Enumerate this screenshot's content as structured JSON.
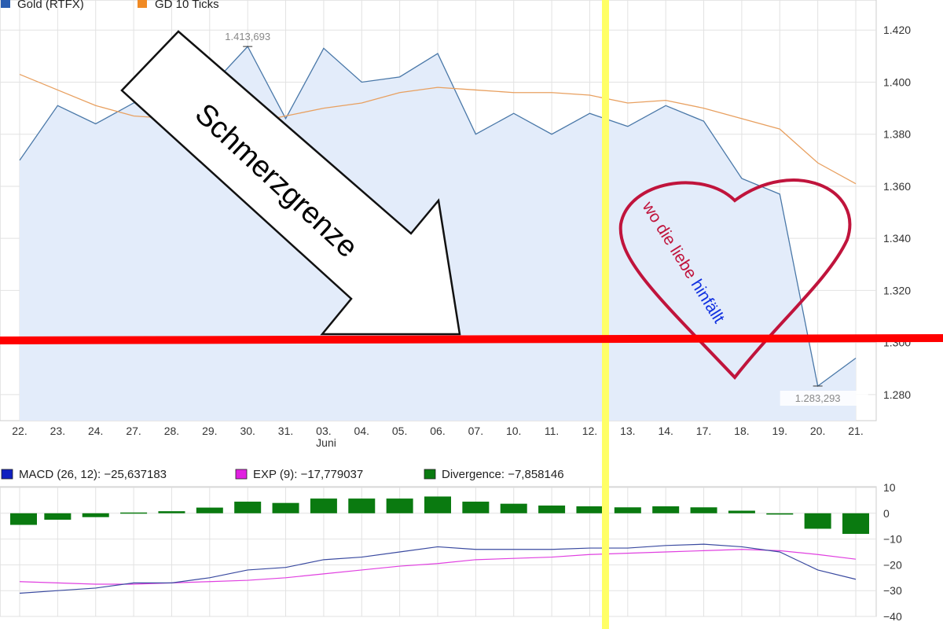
{
  "chart_data": [
    {
      "type": "area",
      "legend": [
        {
          "label": "Gold (RTFX)",
          "color": "#2a5db0"
        },
        {
          "label": "GD 10 Ticks",
          "color": "#f08a24"
        }
      ],
      "categories": [
        "22.",
        "23.",
        "24.",
        "27.",
        "28.",
        "29.",
        "30.",
        "31.",
        "03.",
        "04.",
        "05.",
        "06.",
        "07.",
        "10.",
        "11.",
        "12.",
        "13.",
        "14.",
        "17.",
        "18.",
        "19.",
        "20.",
        "21."
      ],
      "month_label": "Juni",
      "series": [
        {
          "name": "Gold (RTFX)",
          "color": "#4a78a8",
          "fill": "#e3ecfa",
          "values": [
            1370,
            1391,
            1384,
            1392,
            1396,
            1398,
            1413.693,
            1386,
            1413,
            1400,
            1402,
            1411,
            1380,
            1388,
            1380,
            1388,
            1383,
            1391,
            1385,
            1363,
            1357,
            1283.293,
            1294
          ]
        },
        {
          "name": "GD 10 Ticks",
          "color": "#e8a060",
          "values": [
            1403,
            1397,
            1391,
            1387,
            1386,
            1385,
            1384,
            1387,
            1390,
            1392,
            1396,
            1398,
            1397,
            1396,
            1396,
            1395,
            1392,
            1393,
            1390,
            1386,
            1382,
            1369,
            1361
          ]
        }
      ],
      "y_ticks": [
        "1.420",
        "1.400",
        "1.380",
        "1.360",
        "1.340",
        "1.320",
        "1.300",
        "1.280"
      ],
      "ylim": [
        1270,
        1424
      ],
      "max_label": "1.413,693",
      "min_label": "1.283,293",
      "grid": true
    },
    {
      "type": "bar",
      "legend": [
        {
          "label": "MACD (26, 12): −25,637183",
          "color": "#1020c0"
        },
        {
          "label": "EXP (9): −17,779037",
          "color": "#e020e0"
        },
        {
          "label": "Divergence: −7,858146",
          "color": "#0a7a10"
        }
      ],
      "series": [
        {
          "name": "Divergence",
          "color": "#0a7a10",
          "values": [
            -4.5,
            -2.5,
            -1.5,
            0.3,
            0.8,
            2.2,
            4.5,
            4,
            5.7,
            5.7,
            5.7,
            6.5,
            4.5,
            3.7,
            3,
            2.7,
            2.3,
            2.7,
            2.3,
            1,
            -0.5,
            -6,
            -8
          ]
        },
        {
          "name": "MACD",
          "color": "#3a4aa0",
          "values": [
            -31,
            -30,
            -29,
            -27,
            -27,
            -25,
            -22,
            -21,
            -18,
            -17,
            -15,
            -13,
            -14,
            -14,
            -14,
            -13.5,
            -13.5,
            -12.5,
            -12,
            -13,
            -15,
            -22,
            -25.6
          ]
        },
        {
          "name": "EXP",
          "color": "#e040e0",
          "values": [
            -26.5,
            -27,
            -27.5,
            -27.5,
            -27,
            -26.5,
            -26,
            -25,
            -23.5,
            -22,
            -20.5,
            -19.5,
            -18,
            -17.5,
            -17,
            -16,
            -15.5,
            -15,
            -14.5,
            -14,
            -14.5,
            -16,
            -17.8
          ]
        }
      ],
      "y_ticks": [
        "10",
        "0",
        "−10",
        "−20",
        "−30",
        "−40"
      ],
      "ylim": [
        -40,
        10
      ],
      "grid": true
    }
  ],
  "annotations": {
    "arrow_text": "Schmerzgrenze",
    "heart_text_1": "wo die liebe ",
    "heart_text_2": "hinfällt",
    "hline_color": "#ff0000",
    "vline_color": "#ffff66",
    "heart_color": "#c0143c"
  }
}
